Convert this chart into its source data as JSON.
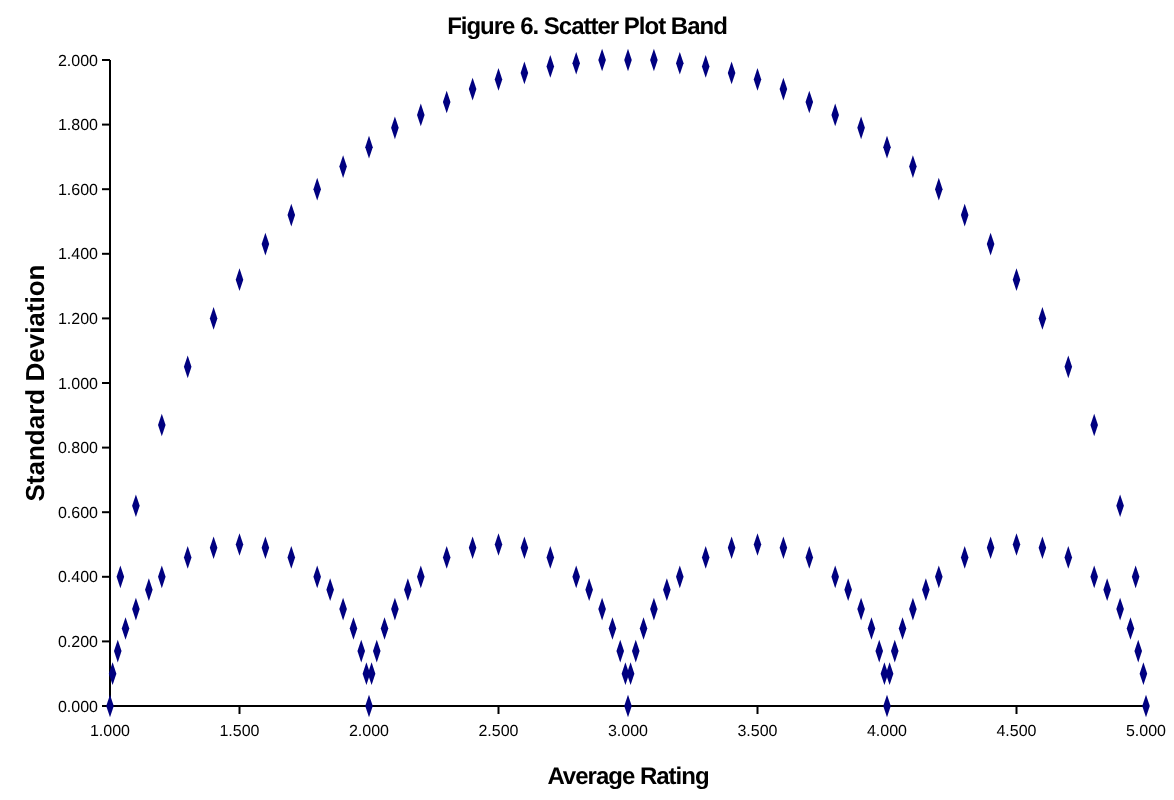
{
  "chart_data": {
    "type": "scatter",
    "title": "Figure 6. Scatter Plot Band",
    "xlabel": "Average Rating",
    "ylabel": "Standard Deviation",
    "marker": "diamond",
    "grid": false,
    "xlim": [
      1,
      5
    ],
    "ylim": [
      0,
      2
    ],
    "xticks": [
      {
        "value": 1,
        "label": "1.000"
      },
      {
        "value": 1.5,
        "label": "1.500"
      },
      {
        "value": 2,
        "label": "2.000"
      },
      {
        "value": 2.5,
        "label": "2.500"
      },
      {
        "value": 3,
        "label": "3.000"
      },
      {
        "value": 3.5,
        "label": "3.500"
      },
      {
        "value": 4,
        "label": "4.000"
      },
      {
        "value": 4.5,
        "label": "4.500"
      },
      {
        "value": 5,
        "label": "5.000"
      }
    ],
    "yticks": [
      {
        "value": 0,
        "label": "0.000"
      },
      {
        "value": 0.2,
        "label": "0.200"
      },
      {
        "value": 0.4,
        "label": "0.400"
      },
      {
        "value": 0.6,
        "label": "0.600"
      },
      {
        "value": 0.8,
        "label": "0.800"
      },
      {
        "value": 1,
        "label": "1.000"
      },
      {
        "value": 1.2,
        "label": "1.200"
      },
      {
        "value": 1.4,
        "label": "1.400"
      },
      {
        "value": 1.6,
        "label": "1.600"
      },
      {
        "value": 1.8,
        "label": "1.800"
      },
      {
        "value": 2,
        "label": "2.000"
      }
    ],
    "series": [
      {
        "color": "#000080",
        "x": [
          1.04,
          1.1,
          1.2,
          1.3,
          1.4,
          1.5,
          1.6,
          1.7,
          1.8,
          1.9,
          2.0,
          2.1,
          2.2,
          2.3,
          2.4,
          2.5,
          2.6,
          2.7,
          2.8,
          2.9,
          3.0,
          3.1,
          3.2,
          3.3,
          3.4,
          3.5,
          3.6,
          3.7,
          3.8,
          3.9,
          4.0,
          4.1,
          4.2,
          4.3,
          4.4,
          4.5,
          4.6,
          4.7,
          4.8,
          4.9,
          4.96
        ],
        "values": [
          0.4,
          0.62,
          0.87,
          1.05,
          1.2,
          1.32,
          1.43,
          1.52,
          1.6,
          1.67,
          1.73,
          1.79,
          1.83,
          1.87,
          1.91,
          1.94,
          1.96,
          1.98,
          1.99,
          2.0,
          2.0,
          2.0,
          1.99,
          1.98,
          1.96,
          1.94,
          1.91,
          1.87,
          1.83,
          1.79,
          1.73,
          1.67,
          1.6,
          1.52,
          1.43,
          1.32,
          1.2,
          1.05,
          0.87,
          0.62,
          0.4
        ]
      },
      {
        "color": "#000080",
        "x": [
          1,
          1.01,
          1.03,
          1.06,
          1.1,
          1.15,
          1.2,
          1.3,
          1.4,
          1.5,
          1.6,
          1.7,
          1.8,
          1.85,
          1.9,
          1.94,
          1.97,
          1.99,
          2,
          2.01,
          2.03,
          2.06,
          2.1,
          2.15,
          2.2,
          2.3,
          2.4,
          2.5,
          2.6,
          2.7,
          2.8,
          2.85,
          2.9,
          2.94,
          2.97,
          2.99,
          3,
          3.01,
          3.03,
          3.06,
          3.1,
          3.15,
          3.2,
          3.3,
          3.4,
          3.5,
          3.6,
          3.7,
          3.8,
          3.85,
          3.9,
          3.94,
          3.97,
          3.99,
          4,
          4.01,
          4.03,
          4.06,
          4.1,
          4.15,
          4.2,
          4.3,
          4.4,
          4.5,
          4.6,
          4.7,
          4.8,
          4.85,
          4.9,
          4.94,
          4.97,
          4.99,
          5
        ],
        "values": [
          0,
          0.1,
          0.17,
          0.24,
          0.3,
          0.36,
          0.4,
          0.46,
          0.49,
          0.5,
          0.49,
          0.46,
          0.4,
          0.36,
          0.3,
          0.24,
          0.17,
          0.1,
          0,
          0.1,
          0.17,
          0.24,
          0.3,
          0.36,
          0.4,
          0.46,
          0.49,
          0.5,
          0.49,
          0.46,
          0.4,
          0.36,
          0.3,
          0.24,
          0.17,
          0.1,
          0,
          0.1,
          0.17,
          0.24,
          0.3,
          0.36,
          0.4,
          0.46,
          0.49,
          0.5,
          0.49,
          0.46,
          0.4,
          0.36,
          0.3,
          0.24,
          0.17,
          0.1,
          0,
          0.1,
          0.17,
          0.24,
          0.3,
          0.36,
          0.4,
          0.46,
          0.49,
          0.5,
          0.49,
          0.46,
          0.4,
          0.36,
          0.3,
          0.24,
          0.17,
          0.1,
          0
        ]
      }
    ]
  }
}
